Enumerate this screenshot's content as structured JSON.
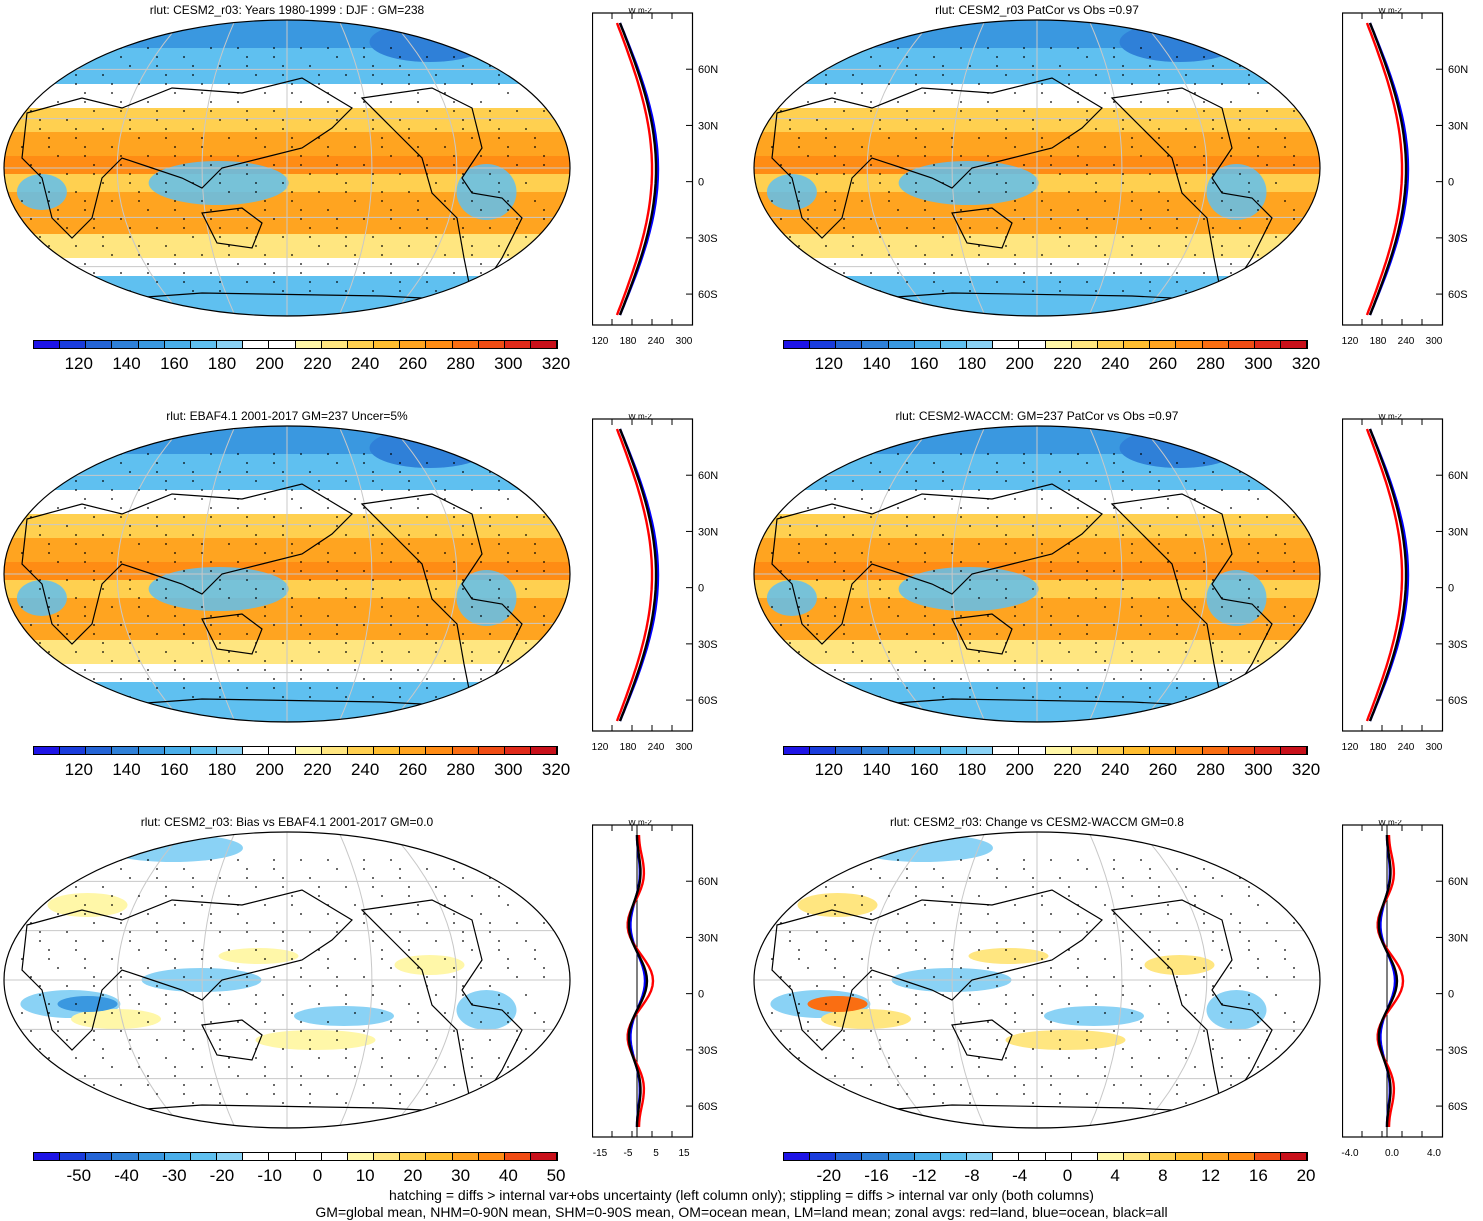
{
  "panels": [
    {
      "title": "rlut: CESM2_r03: Years 1980-1999 : DJF : GM=238",
      "type": "abs",
      "colorbar_labels": [
        "120",
        "140",
        "160",
        "180",
        "200",
        "220",
        "240",
        "260",
        "280",
        "300",
        "320"
      ],
      "zonal_xticks": [
        "120",
        "180",
        "240",
        "300"
      ],
      "zonal_unit": "W m-2"
    },
    {
      "title": "rlut: CESM2_r03 PatCor vs Obs =0.97",
      "type": "abs",
      "colorbar_labels": [
        "120",
        "140",
        "160",
        "180",
        "200",
        "220",
        "240",
        "260",
        "280",
        "300",
        "320"
      ],
      "zonal_xticks": [
        "120",
        "180",
        "240",
        "300"
      ],
      "zonal_unit": "W m-2"
    },
    {
      "title": "rlut: EBAF4.1 2001-2017 GM=237 Uncer=5%",
      "type": "abs",
      "colorbar_labels": [
        "120",
        "140",
        "160",
        "180",
        "200",
        "220",
        "240",
        "260",
        "280",
        "300",
        "320"
      ],
      "zonal_xticks": [
        "120",
        "180",
        "240",
        "300"
      ],
      "zonal_unit": "W m-2"
    },
    {
      "title": "rlut: CESM2-WACCM: GM=237 PatCor vs Obs =0.97",
      "type": "abs",
      "colorbar_labels": [
        "120",
        "140",
        "160",
        "180",
        "200",
        "220",
        "240",
        "260",
        "280",
        "300",
        "320"
      ],
      "zonal_xticks": [
        "120",
        "180",
        "240",
        "300"
      ],
      "zonal_unit": "W m-2"
    },
    {
      "title": "rlut: CESM2_r03: Bias vs EBAF4.1 2001-2017 GM=0.0",
      "type": "bias",
      "colorbar_labels": [
        "-50",
        "-40",
        "-30",
        "-20",
        "-10",
        "0",
        "10",
        "20",
        "30",
        "40",
        "50"
      ],
      "zonal_xticks": [
        "-15",
        "-5",
        "5",
        "15"
      ],
      "zonal_unit": "W m-2"
    },
    {
      "title": "rlut: CESM2_r03: Change vs CESM2-WACCM GM=0.8",
      "type": "change",
      "colorbar_labels": [
        "-20",
        "-16",
        "-12",
        "-8",
        "-4",
        "0",
        "4",
        "8",
        "12",
        "16",
        "20"
      ],
      "zonal_xticks": [
        "-4.0",
        "0.0",
        "4.0"
      ],
      "zonal_unit": "W m-2"
    }
  ],
  "lat_labels": [
    "60N",
    "30N",
    "0",
    "30S",
    "60S"
  ],
  "colors": {
    "abs": [
      "#1e14e6",
      "#1a3cdc",
      "#2464d6",
      "#2f80d8",
      "#3a98e0",
      "#49aeea",
      "#5fc0f0",
      "#8ad2f5",
      "#ffffff",
      "#ffffff",
      "#fff7a8",
      "#ffe680",
      "#ffd050",
      "#ffbe30",
      "#ffa420",
      "#ff8c14",
      "#fa6e12",
      "#f04c14",
      "#e02a1a",
      "#c8101a"
    ],
    "diff": [
      "#1e14e6",
      "#1a3cdc",
      "#2464d6",
      "#2f80d8",
      "#3a98e0",
      "#49aeea",
      "#5fc0f0",
      "#8ad2f5",
      "#ffffff",
      "#ffffff",
      "#ffffff",
      "#ffffff",
      "#fff7a8",
      "#ffe680",
      "#ffd050",
      "#ffbe30",
      "#ffa420",
      "#ff8c14",
      "#f04c14",
      "#c8101a"
    ],
    "land_line": "#ff0000",
    "ocean_line": "#0000ff",
    "all_line": "#000000"
  },
  "footer": [
    "hatching = diffs > internal var+obs uncertainty (left column only); stippling = diffs > internal var only (both columns)",
    "GM=global mean, NHM=0-90N mean, SHM=0-90S mean, OM=ocean mean, LM=land mean; zonal avgs: red=land, blue=ocean, black=all"
  ]
}
